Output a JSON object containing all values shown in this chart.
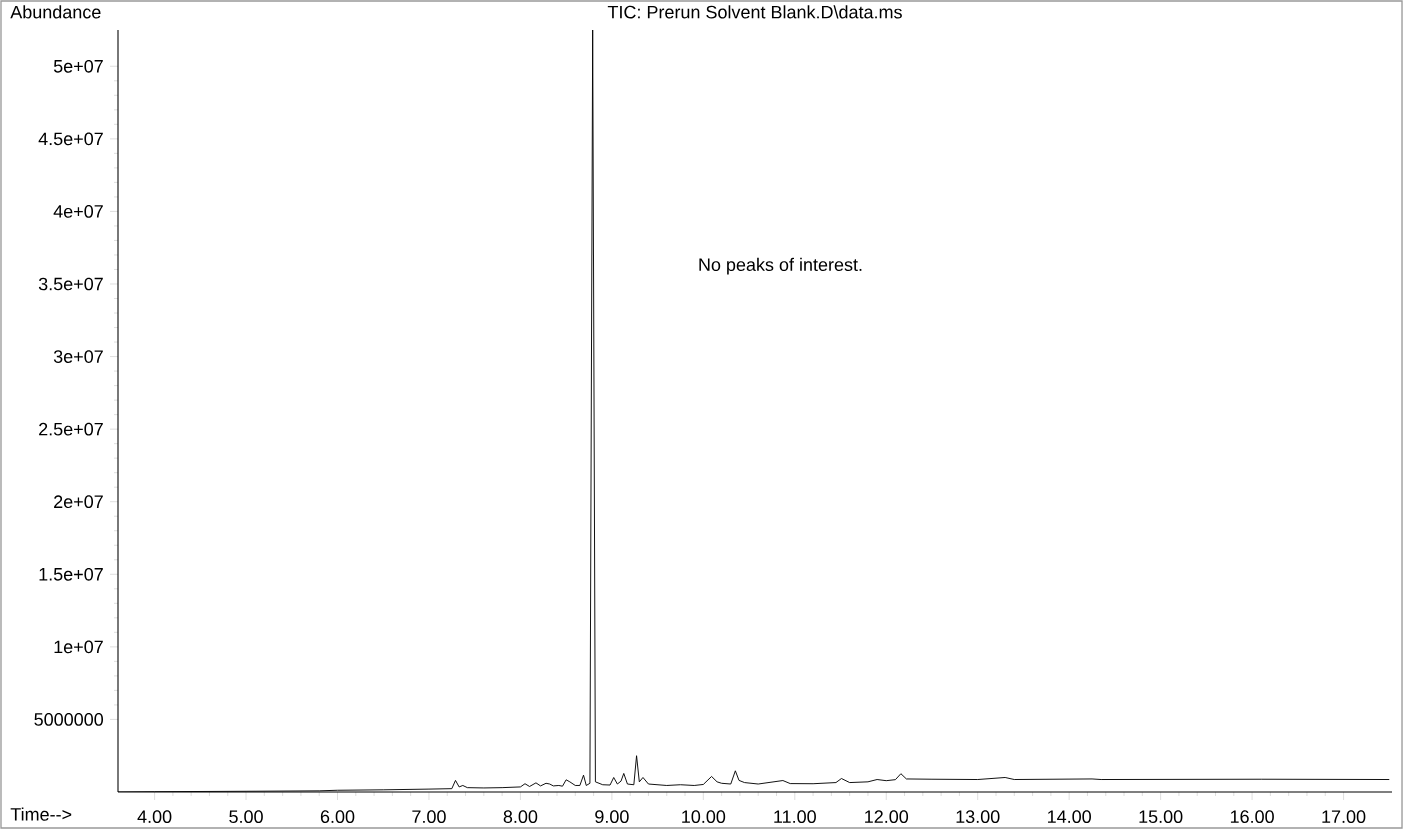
{
  "chart_data": {
    "type": "line",
    "title": "TIC: Prerun Solvent Blank.D\\data.ms",
    "xlabel": "Time-->",
    "ylabel": "Abundance",
    "annotations": [
      "No peaks of interest."
    ],
    "color": "#000000",
    "x": [
      3.6,
      4.0,
      5.0,
      5.8,
      6.0,
      6.5,
      7.0,
      7.25,
      7.29,
      7.33,
      7.37,
      7.42,
      7.6,
      7.8,
      8.0,
      8.05,
      8.1,
      8.17,
      8.22,
      8.28,
      8.32,
      8.36,
      8.42,
      8.46,
      8.5,
      8.54,
      8.6,
      8.65,
      8.69,
      8.72,
      8.76,
      8.79,
      8.82,
      8.9,
      8.98,
      9.02,
      9.06,
      9.1,
      9.13,
      9.17,
      9.24,
      9.27,
      9.3,
      9.34,
      9.4,
      9.6,
      9.75,
      9.9,
      10.0,
      10.09,
      10.15,
      10.2,
      10.3,
      10.35,
      10.39,
      10.45,
      10.6,
      10.87,
      10.95,
      11.2,
      11.45,
      11.51,
      11.6,
      11.8,
      11.9,
      12.0,
      12.1,
      12.16,
      12.22,
      12.5,
      13.0,
      13.3,
      13.4,
      14.25,
      14.35,
      16.1,
      17.5
    ],
    "values": [
      0,
      20000,
      50000,
      80000,
      120000,
      150000,
      200000,
      230000,
      800000,
      350000,
      450000,
      300000,
      280000,
      300000,
      350000,
      570000,
      380000,
      630000,
      420000,
      600000,
      550000,
      420000,
      450000,
      400000,
      840000,
      700000,
      450000,
      450000,
      1160000,
      450000,
      600000,
      52500000,
      700000,
      500000,
      480000,
      1000000,
      550000,
      750000,
      1280000,
      550000,
      500000,
      2500000,
      700000,
      1000000,
      550000,
      450000,
      500000,
      450000,
      520000,
      1070000,
      700000,
      600000,
      550000,
      1460000,
      800000,
      650000,
      550000,
      790000,
      580000,
      570000,
      650000,
      930000,
      650000,
      700000,
      860000,
      780000,
      850000,
      1260000,
      900000,
      880000,
      860000,
      1000000,
      860000,
      900000,
      860000,
      880000,
      860000
    ],
    "xlim": [
      3.6,
      17.53
    ],
    "ylim": [
      0,
      52500000
    ],
    "xticks": [
      {
        "value": 4,
        "label": "4.00"
      },
      {
        "value": 5,
        "label": "5.00"
      },
      {
        "value": 6,
        "label": "6.00"
      },
      {
        "value": 7,
        "label": "7.00"
      },
      {
        "value": 8,
        "label": "8.00"
      },
      {
        "value": 9,
        "label": "9.00"
      },
      {
        "value": 10,
        "label": "10.00"
      },
      {
        "value": 11,
        "label": "11.00"
      },
      {
        "value": 12,
        "label": "12.00"
      },
      {
        "value": 13,
        "label": "13.00"
      },
      {
        "value": 14,
        "label": "14.00"
      },
      {
        "value": 15,
        "label": "15.00"
      },
      {
        "value": 16,
        "label": "16.00"
      },
      {
        "value": 17,
        "label": "17.00"
      }
    ],
    "yticks": [
      5000000,
      {
        "value": 10000000,
        "label": "1e+07"
      },
      {
        "value": 15000000,
        "label": "1.5e+07"
      },
      {
        "value": 20000000,
        "label": "2e+07"
      },
      {
        "value": 25000000,
        "label": "2.5e+07"
      },
      {
        "value": 30000000,
        "label": "3e+07"
      },
      {
        "value": 35000000,
        "label": "3.5e+07"
      },
      {
        "value": 40000000,
        "label": "4e+07"
      },
      {
        "value": 45000000,
        "label": "4.5e+07"
      },
      {
        "value": 50000000,
        "label": "5e+07"
      }
    ]
  }
}
